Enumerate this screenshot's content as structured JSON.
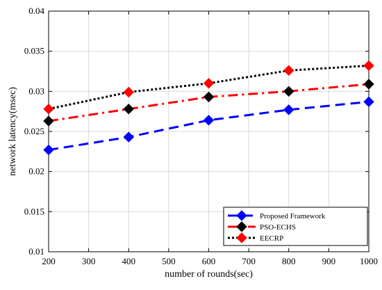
{
  "chart_data": {
    "type": "line",
    "xlabel": "number of rounds(sec)",
    "ylabel": "network latency(msec)",
    "xlim": [
      200,
      1000
    ],
    "ylim": [
      0.01,
      0.04
    ],
    "xticks": [
      "200",
      "300",
      "400",
      "500",
      "600",
      "700",
      "800",
      "900",
      "1000"
    ],
    "yticks": [
      "0.01",
      "0.015",
      "0.02",
      "0.025",
      "0.03",
      "0.035",
      "0.04"
    ],
    "grid": true,
    "legend_position": "bottom-right",
    "x": [
      200,
      400,
      600,
      800,
      1000
    ],
    "series": [
      {
        "name": "Proposed Framework",
        "values": [
          0.0227,
          0.0243,
          0.0264,
          0.0277,
          0.0287
        ],
        "color": "#0000ff",
        "marker_color": "#0000ff",
        "line_style": "dashed"
      },
      {
        "name": "PSO-ECHS",
        "values": [
          0.0263,
          0.0278,
          0.0293,
          0.03,
          0.0309
        ],
        "color": "#ff0000",
        "marker_color": "#000000",
        "line_style": "dash-dot"
      },
      {
        "name": "EECRP",
        "values": [
          0.0278,
          0.0299,
          0.031,
          0.0326,
          0.0332
        ],
        "color": "#000000",
        "marker_color": "#ff0000",
        "line_style": "dotted"
      }
    ]
  }
}
